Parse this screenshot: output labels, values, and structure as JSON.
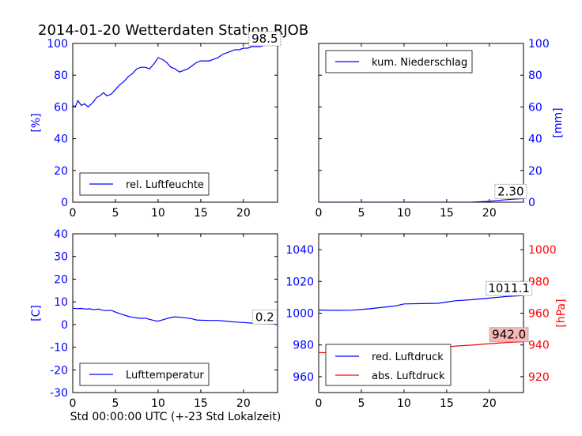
{
  "figure": {
    "title": "2014-01-20 Wetterdaten Station RJOB",
    "xlabel": "Std 00:00:00 UTC (+-23 Std Lokalzeit)"
  },
  "chart_data": [
    {
      "id": "humidity",
      "type": "line",
      "xlim": [
        0,
        24
      ],
      "ylim": [
        0,
        100
      ],
      "xticks": [
        0,
        5,
        10,
        15,
        20
      ],
      "yticks": [
        0,
        20,
        40,
        60,
        80,
        100
      ],
      "ylabel": "[%]",
      "ylabel_side": "left",
      "tick_color": "#0000ff",
      "legend": {
        "position": "lower-left",
        "entries": [
          {
            "label": "rel. Luftfeuchte",
            "color": "#0000ff"
          }
        ]
      },
      "annotation": {
        "text": "98.5",
        "x": 22.5,
        "y": 98.5,
        "boxed": true
      },
      "series": [
        {
          "color": "#0000ff",
          "x": [
            0,
            0.3,
            0.6,
            1,
            1.4,
            1.8,
            2,
            2.4,
            2.8,
            3.2,
            3.6,
            4,
            4.5,
            5,
            5.5,
            6,
            6.5,
            7,
            7.5,
            8,
            8.5,
            9,
            9.5,
            10,
            10.5,
            11,
            11.5,
            12,
            12.5,
            13,
            13.5,
            14,
            14.5,
            15,
            15.5,
            16,
            16.5,
            17,
            17.5,
            18,
            18.5,
            19,
            19.5,
            20,
            20.5,
            21,
            21.5,
            22,
            22.5,
            23,
            23.5,
            24
          ],
          "values": [
            61,
            60,
            64,
            61,
            62,
            60,
            61,
            63,
            66,
            67,
            69,
            67,
            68,
            71,
            74,
            76,
            79,
            81,
            84,
            85,
            85,
            84,
            87,
            91,
            90,
            88,
            85,
            84,
            82,
            83,
            84,
            86,
            88,
            89,
            89,
            89,
            90,
            91,
            93,
            94,
            95,
            96,
            96,
            97,
            97,
            98,
            98,
            98,
            99,
            99,
            99,
            99
          ]
        }
      ]
    },
    {
      "id": "precipitation",
      "type": "line",
      "xlim": [
        0,
        24
      ],
      "ylim": [
        0,
        100
      ],
      "xticks": [
        0,
        5,
        10,
        15,
        20
      ],
      "yticks": [
        0,
        20,
        40,
        60,
        80,
        100
      ],
      "ylabel": "[mm]",
      "ylabel_side": "right",
      "tick_color": "#0000ff",
      "legend": {
        "position": "upper-left",
        "entries": [
          {
            "label": "kum. Niederschlag",
            "color": "#0000ff"
          }
        ]
      },
      "annotation": {
        "text": "2.30",
        "x": 22.5,
        "y": 2.3,
        "boxed": true
      },
      "series": [
        {
          "color": "#0000ff",
          "x": [
            0,
            5,
            10,
            15,
            18,
            19,
            20,
            21,
            22,
            23,
            24
          ],
          "values": [
            0,
            0,
            0,
            0,
            0.1,
            0.3,
            0.6,
            1.1,
            1.6,
            2.0,
            2.3
          ]
        }
      ]
    },
    {
      "id": "temperature",
      "type": "line",
      "xlim": [
        0,
        24
      ],
      "ylim": [
        -30,
        40
      ],
      "xticks": [
        0,
        5,
        10,
        15,
        20
      ],
      "yticks": [
        -30,
        -20,
        -10,
        0,
        10,
        20,
        30,
        40
      ],
      "ylabel": "[C]",
      "ylabel_side": "left",
      "tick_color": "#0000ff",
      "legend": {
        "position": "lower-left",
        "entries": [
          {
            "label": "Lufttemperatur",
            "color": "#0000ff"
          }
        ]
      },
      "annotation": {
        "text": "0.2",
        "x": 22.5,
        "y": 0.2,
        "boxed": true
      },
      "series": [
        {
          "color": "#0000ff",
          "x": [
            0,
            0.5,
            1,
            1.5,
            2,
            2.5,
            3,
            3.5,
            4,
            4.5,
            5,
            5.5,
            6,
            6.5,
            7,
            7.5,
            8,
            8.5,
            9,
            9.5,
            10,
            10.5,
            11,
            11.5,
            12,
            12.5,
            13,
            13.5,
            14,
            14.5,
            15,
            16,
            17,
            18,
            19,
            20,
            21,
            22,
            23,
            24
          ],
          "values": [
            7.2,
            7.0,
            7.1,
            6.8,
            6.9,
            6.5,
            6.8,
            6.3,
            6.1,
            6.3,
            5.5,
            4.8,
            4.2,
            3.6,
            3.2,
            2.9,
            2.7,
            2.8,
            2.3,
            1.8,
            1.5,
            2.0,
            2.6,
            3.1,
            3.4,
            3.2,
            3.0,
            2.8,
            2.5,
            2.0,
            1.9,
            1.8,
            1.8,
            1.5,
            1.1,
            0.9,
            0.6,
            0.4,
            0.3,
            0.2
          ]
        }
      ]
    },
    {
      "id": "pressure",
      "type": "line",
      "xlim": [
        0,
        24
      ],
      "ylim": [
        950,
        1050
      ],
      "ylim_right": [
        910,
        1010
      ],
      "xticks": [
        0,
        5,
        10,
        15,
        20
      ],
      "yticks": [
        960,
        980,
        1000,
        1020,
        1040
      ],
      "yticks_right": [
        920,
        940,
        960,
        980,
        1000
      ],
      "ylabel_right": "[hPa]",
      "tick_color": "#0000ff",
      "tick_color_right": "#ff0000",
      "legend": {
        "position": "lower-left",
        "entries": [
          {
            "label": "red. Luftdruck",
            "color": "#0000ff"
          },
          {
            "label": "abs. Luftdruck",
            "color": "#ff0000"
          }
        ]
      },
      "annotations": [
        {
          "text": "1011.1",
          "x": 22.3,
          "y": 1011.1,
          "axis": "left",
          "boxed": true,
          "fill": ""
        },
        {
          "text": "942.0",
          "x": 22.3,
          "y": 942.0,
          "axis": "right",
          "boxed": true,
          "fill": "#f4b8b8"
        }
      ],
      "series": [
        {
          "name": "red. Luftdruck",
          "axis": "left",
          "color": "#0000ff",
          "x": [
            0,
            2,
            4,
            6,
            8,
            9,
            10,
            12,
            14,
            15,
            16,
            18,
            20,
            22,
            24
          ],
          "values": [
            1002.0,
            1001.8,
            1001.9,
            1002.8,
            1004.0,
            1004.6,
            1005.8,
            1006.0,
            1006.2,
            1007.0,
            1007.8,
            1008.5,
            1009.5,
            1010.5,
            1011.1
          ]
        },
        {
          "name": "abs. Luftdruck",
          "axis": "right",
          "color": "#ff0000",
          "x": [
            0,
            2,
            4,
            6,
            8,
            9,
            10,
            12,
            14,
            15,
            16,
            18,
            20,
            22,
            24
          ],
          "values": [
            935.2,
            934.9,
            934.8,
            935.3,
            936.0,
            936.6,
            937.3,
            937.8,
            938.2,
            938.6,
            939.3,
            939.9,
            940.8,
            941.5,
            942.0
          ]
        }
      ]
    }
  ]
}
